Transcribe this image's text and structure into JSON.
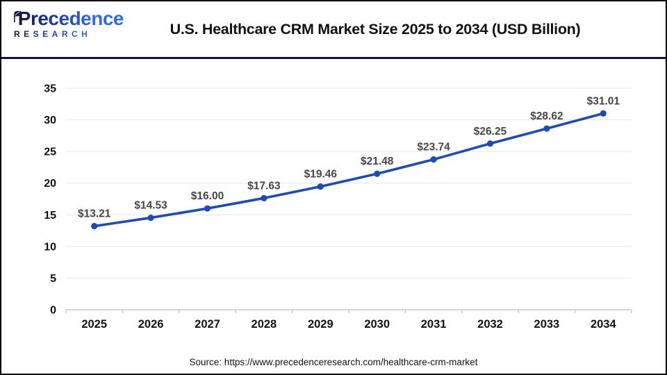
{
  "header": {
    "logo": {
      "name": "Precedence",
      "subtitle": "RESEARCH"
    },
    "title": "U.S. Healthcare CRM Market Size 2025 to 2034 (USD Billion)"
  },
  "footer": {
    "source": "Source: https://www.precedenceresearch.com/healthcare-crm-market"
  },
  "colors": {
    "line": "#1d4bb2",
    "marker": "#1d4bb2",
    "grid": "#e4e4e4",
    "axis": "#bfbfbf",
    "tick_label": "#111111",
    "data_label": "#454545",
    "divider_navy": "#141438",
    "logo_navy": "#141447",
    "logo_blue": "#2e6be0"
  },
  "chart_data": {
    "type": "line",
    "title": "U.S. Healthcare CRM Market Size 2025 to 2034 (USD Billion)",
    "categories": [
      "2025",
      "2026",
      "2027",
      "2028",
      "2029",
      "2030",
      "2031",
      "2032",
      "2033",
      "2034"
    ],
    "series": [
      {
        "name": "U.S. Healthcare CRM Market Size (USD Billion)",
        "values": [
          13.21,
          14.53,
          16.0,
          17.63,
          19.46,
          21.48,
          23.74,
          26.25,
          28.62,
          31.01
        ]
      }
    ],
    "value_prefix": "$",
    "value_decimals": 2,
    "xlabel": "",
    "ylabel": "",
    "ylim": [
      0,
      35
    ],
    "ytick_step": 5,
    "grid": "horizontal",
    "legend": "none",
    "marker": "circle"
  }
}
